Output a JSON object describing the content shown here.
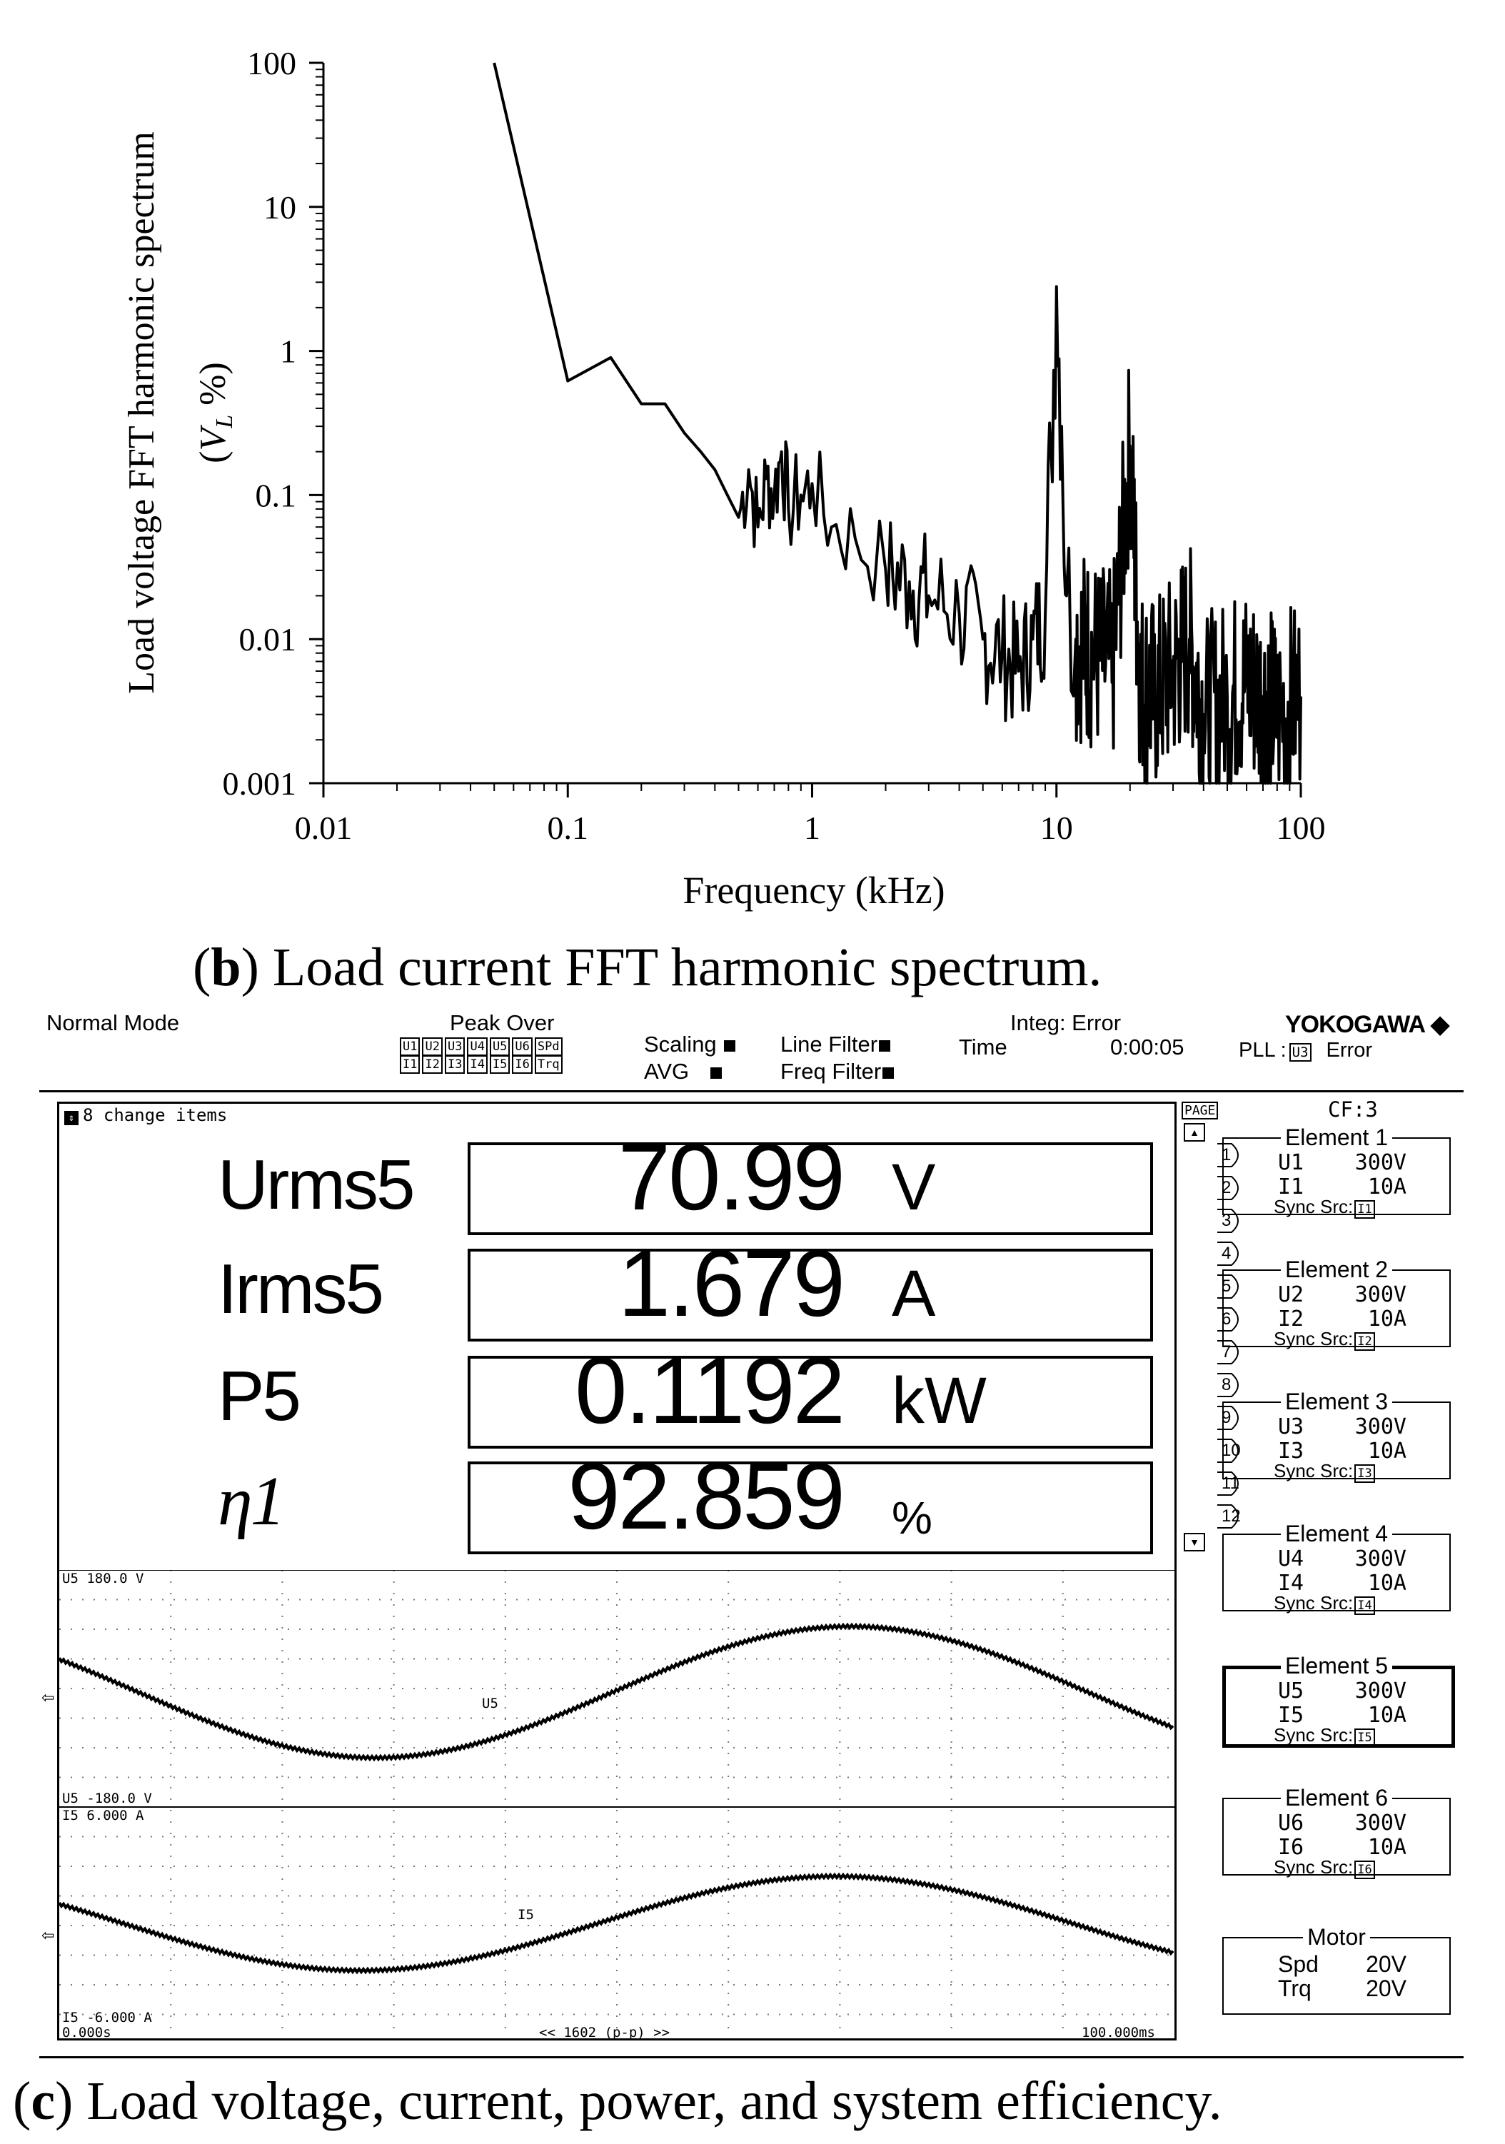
{
  "chart_data": {
    "type": "line",
    "xscale": "log",
    "yscale": "log",
    "xlim": [
      0.01,
      100
    ],
    "ylim": [
      0.001,
      100
    ],
    "xlabel": "Frequency (kHz)",
    "ylabel": "Load voltage FFT harmonic spectrum",
    "ylabel2": "(V_L %)",
    "xticks": [
      "0.01",
      "0.1",
      "1",
      "10",
      "100"
    ],
    "yticks": [
      "0.001",
      "0.01",
      "0.1",
      "1",
      "10",
      "100"
    ],
    "series": [
      {
        "x": [
          0.05,
          0.1,
          0.15,
          0.2,
          0.25,
          0.3,
          0.35,
          0.4,
          0.45,
          0.5,
          0.55,
          0.6,
          0.65,
          0.7,
          0.75,
          0.8,
          0.9,
          1.0,
          1.2,
          1.5,
          2,
          2.5,
          3,
          4,
          5,
          6,
          7,
          8,
          9,
          9.5,
          10,
          10.5,
          11,
          12,
          14,
          17,
          20,
          22,
          25,
          30,
          35,
          40,
          50,
          60,
          70,
          80,
          100
        ],
        "y": [
          100,
          0.62,
          0.9,
          0.43,
          0.43,
          0.27,
          0.2,
          0.15,
          0.1,
          0.07,
          0.15,
          0.06,
          0.13,
          0.1,
          0.2,
          0.08,
          0.1,
          0.12,
          0.06,
          0.05,
          0.03,
          0.025,
          0.02,
          0.015,
          0.01,
          0.008,
          0.006,
          0.01,
          0.015,
          0.2,
          2.8,
          0.3,
          0.02,
          0.01,
          0.008,
          0.006,
          0.22,
          0.005,
          0.004,
          0.006,
          0.01,
          0.003,
          0.004,
          0.005,
          0.004,
          0.003,
          0.004
        ]
      }
    ]
  },
  "captions": {
    "b_letter": "b",
    "b_text": "Load current FFT harmonic spectrum.",
    "c_letter": "c",
    "c_text": "Load voltage, current, power, and system efficiency."
  },
  "header": {
    "mode": "Normal Mode",
    "peak_over": "Peak Over",
    "chips_row1": [
      "U1",
      "U2",
      "U3",
      "U4",
      "U5",
      "U6",
      "SPd"
    ],
    "chips_row2": [
      "I1",
      "I2",
      "I3",
      "I4",
      "I5",
      "I6",
      "Trq"
    ],
    "scaling": "Scaling",
    "avg": "AVG",
    "line_filter": "Line Filter",
    "freq_filter": "Freq Filter",
    "time_label": "Time",
    "integ": "Integ: Error",
    "time_value": "0:00:05",
    "brand": "YOKOGAWA",
    "pll_label": "PLL :",
    "pll_src": "U3",
    "pll_status": "Error"
  },
  "display": {
    "change_items": "8 change items",
    "measurements": [
      {
        "label": "Urms5",
        "value": "70.99",
        "unit": "V"
      },
      {
        "label": "Irms5",
        "value": "1.679",
        "unit": "A"
      },
      {
        "label": "P5",
        "value": "0.1192",
        "unit": "kW"
      },
      {
        "label": "η1",
        "value": "92.859",
        "unit": "%"
      }
    ]
  },
  "page_panel": {
    "title": "PAGE",
    "pages": [
      "1",
      "2",
      "3",
      "4",
      "5",
      "6",
      "7",
      "8",
      "9",
      "10",
      "11",
      "12"
    ]
  },
  "right_panel": {
    "cf": "CF:3",
    "elements": [
      {
        "title": "Element 1",
        "u": "U1",
        "u_range": "300V",
        "i": "I1",
        "i_range": "10A",
        "sync": "Sync Src:",
        "src": "I1"
      },
      {
        "title": "Element 2",
        "u": "U2",
        "u_range": "300V",
        "i": "I2",
        "i_range": "10A",
        "sync": "Sync Src:",
        "src": "I2"
      },
      {
        "title": "Element 3",
        "u": "U3",
        "u_range": "300V",
        "i": "I3",
        "i_range": "10A",
        "sync": "Sync Src:",
        "src": "I3"
      },
      {
        "title": "Element 4",
        "u": "U4",
        "u_range": "300V",
        "i": "I4",
        "i_range": "10A",
        "sync": "Sync Src:",
        "src": "I4"
      },
      {
        "title": "Element 5",
        "u": "U5",
        "u_range": "300V",
        "i": "I5",
        "i_range": "10A",
        "sync": "Sync Src:",
        "src": "I5"
      },
      {
        "title": "Element 6",
        "u": "U6",
        "u_range": "300V",
        "i": "I6",
        "i_range": "10A",
        "sync": "Sync Src:",
        "src": "I6"
      }
    ],
    "motor": {
      "title": "Motor",
      "spd": "Spd",
      "spd_range": "20V",
      "trq": "Trq",
      "trq_range": "20V"
    }
  },
  "waveforms": {
    "u_top": "U5   180.0 V",
    "u_bottom": "U5  -180.0 V",
    "u_trace": "U5",
    "i_top": "I5   6.000 A",
    "i_bottom": "I5  -6.000 A",
    "i_trace": "I5",
    "t_start": "0.000s",
    "t_center": "<< 1602 (p-p) >>",
    "t_end": "100.000ms"
  }
}
